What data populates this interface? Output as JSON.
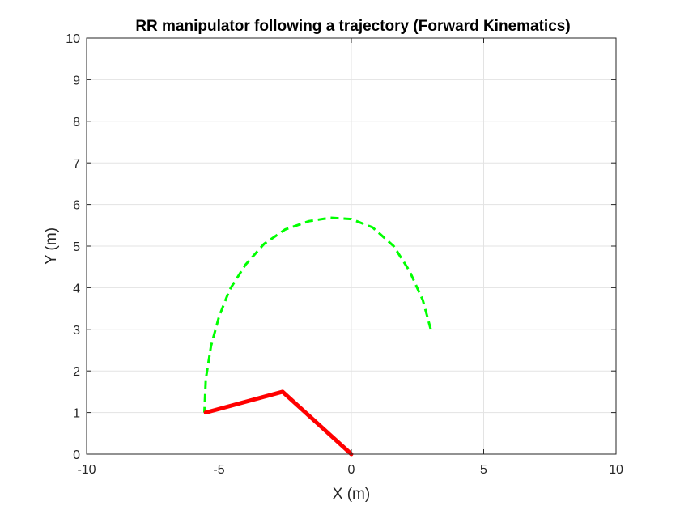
{
  "chart_data": {
    "type": "line",
    "title": "RR manipulator following a trajectory (Forward Kinematics)",
    "xlabel": "X (m)",
    "ylabel": "Y (m)",
    "xlim": [
      -10,
      10
    ],
    "ylim": [
      0,
      10
    ],
    "x_ticks": [
      -10,
      -5,
      0,
      5,
      10
    ],
    "y_ticks": [
      0,
      1,
      2,
      3,
      4,
      5,
      6,
      7,
      8,
      9,
      10
    ],
    "grid": true,
    "series": [
      {
        "style": "dashed",
        "color": "#00ff00",
        "x": [
          3.0,
          2.7,
          2.2,
          1.6,
          0.8,
          0.0,
          -0.8,
          -1.6,
          -2.5,
          -3.3,
          -4.0,
          -4.6,
          -5.0,
          -5.3,
          -5.5,
          -5.55
        ],
        "y": [
          3.0,
          3.7,
          4.4,
          5.0,
          5.45,
          5.65,
          5.68,
          5.6,
          5.4,
          5.05,
          4.55,
          3.95,
          3.3,
          2.6,
          1.8,
          1.0
        ]
      },
      {
        "style": "solid",
        "color": "#ff0000",
        "x": [
          0.0,
          -2.6,
          -5.5
        ],
        "y": [
          0.0,
          1.5,
          1.0
        ]
      }
    ]
  }
}
